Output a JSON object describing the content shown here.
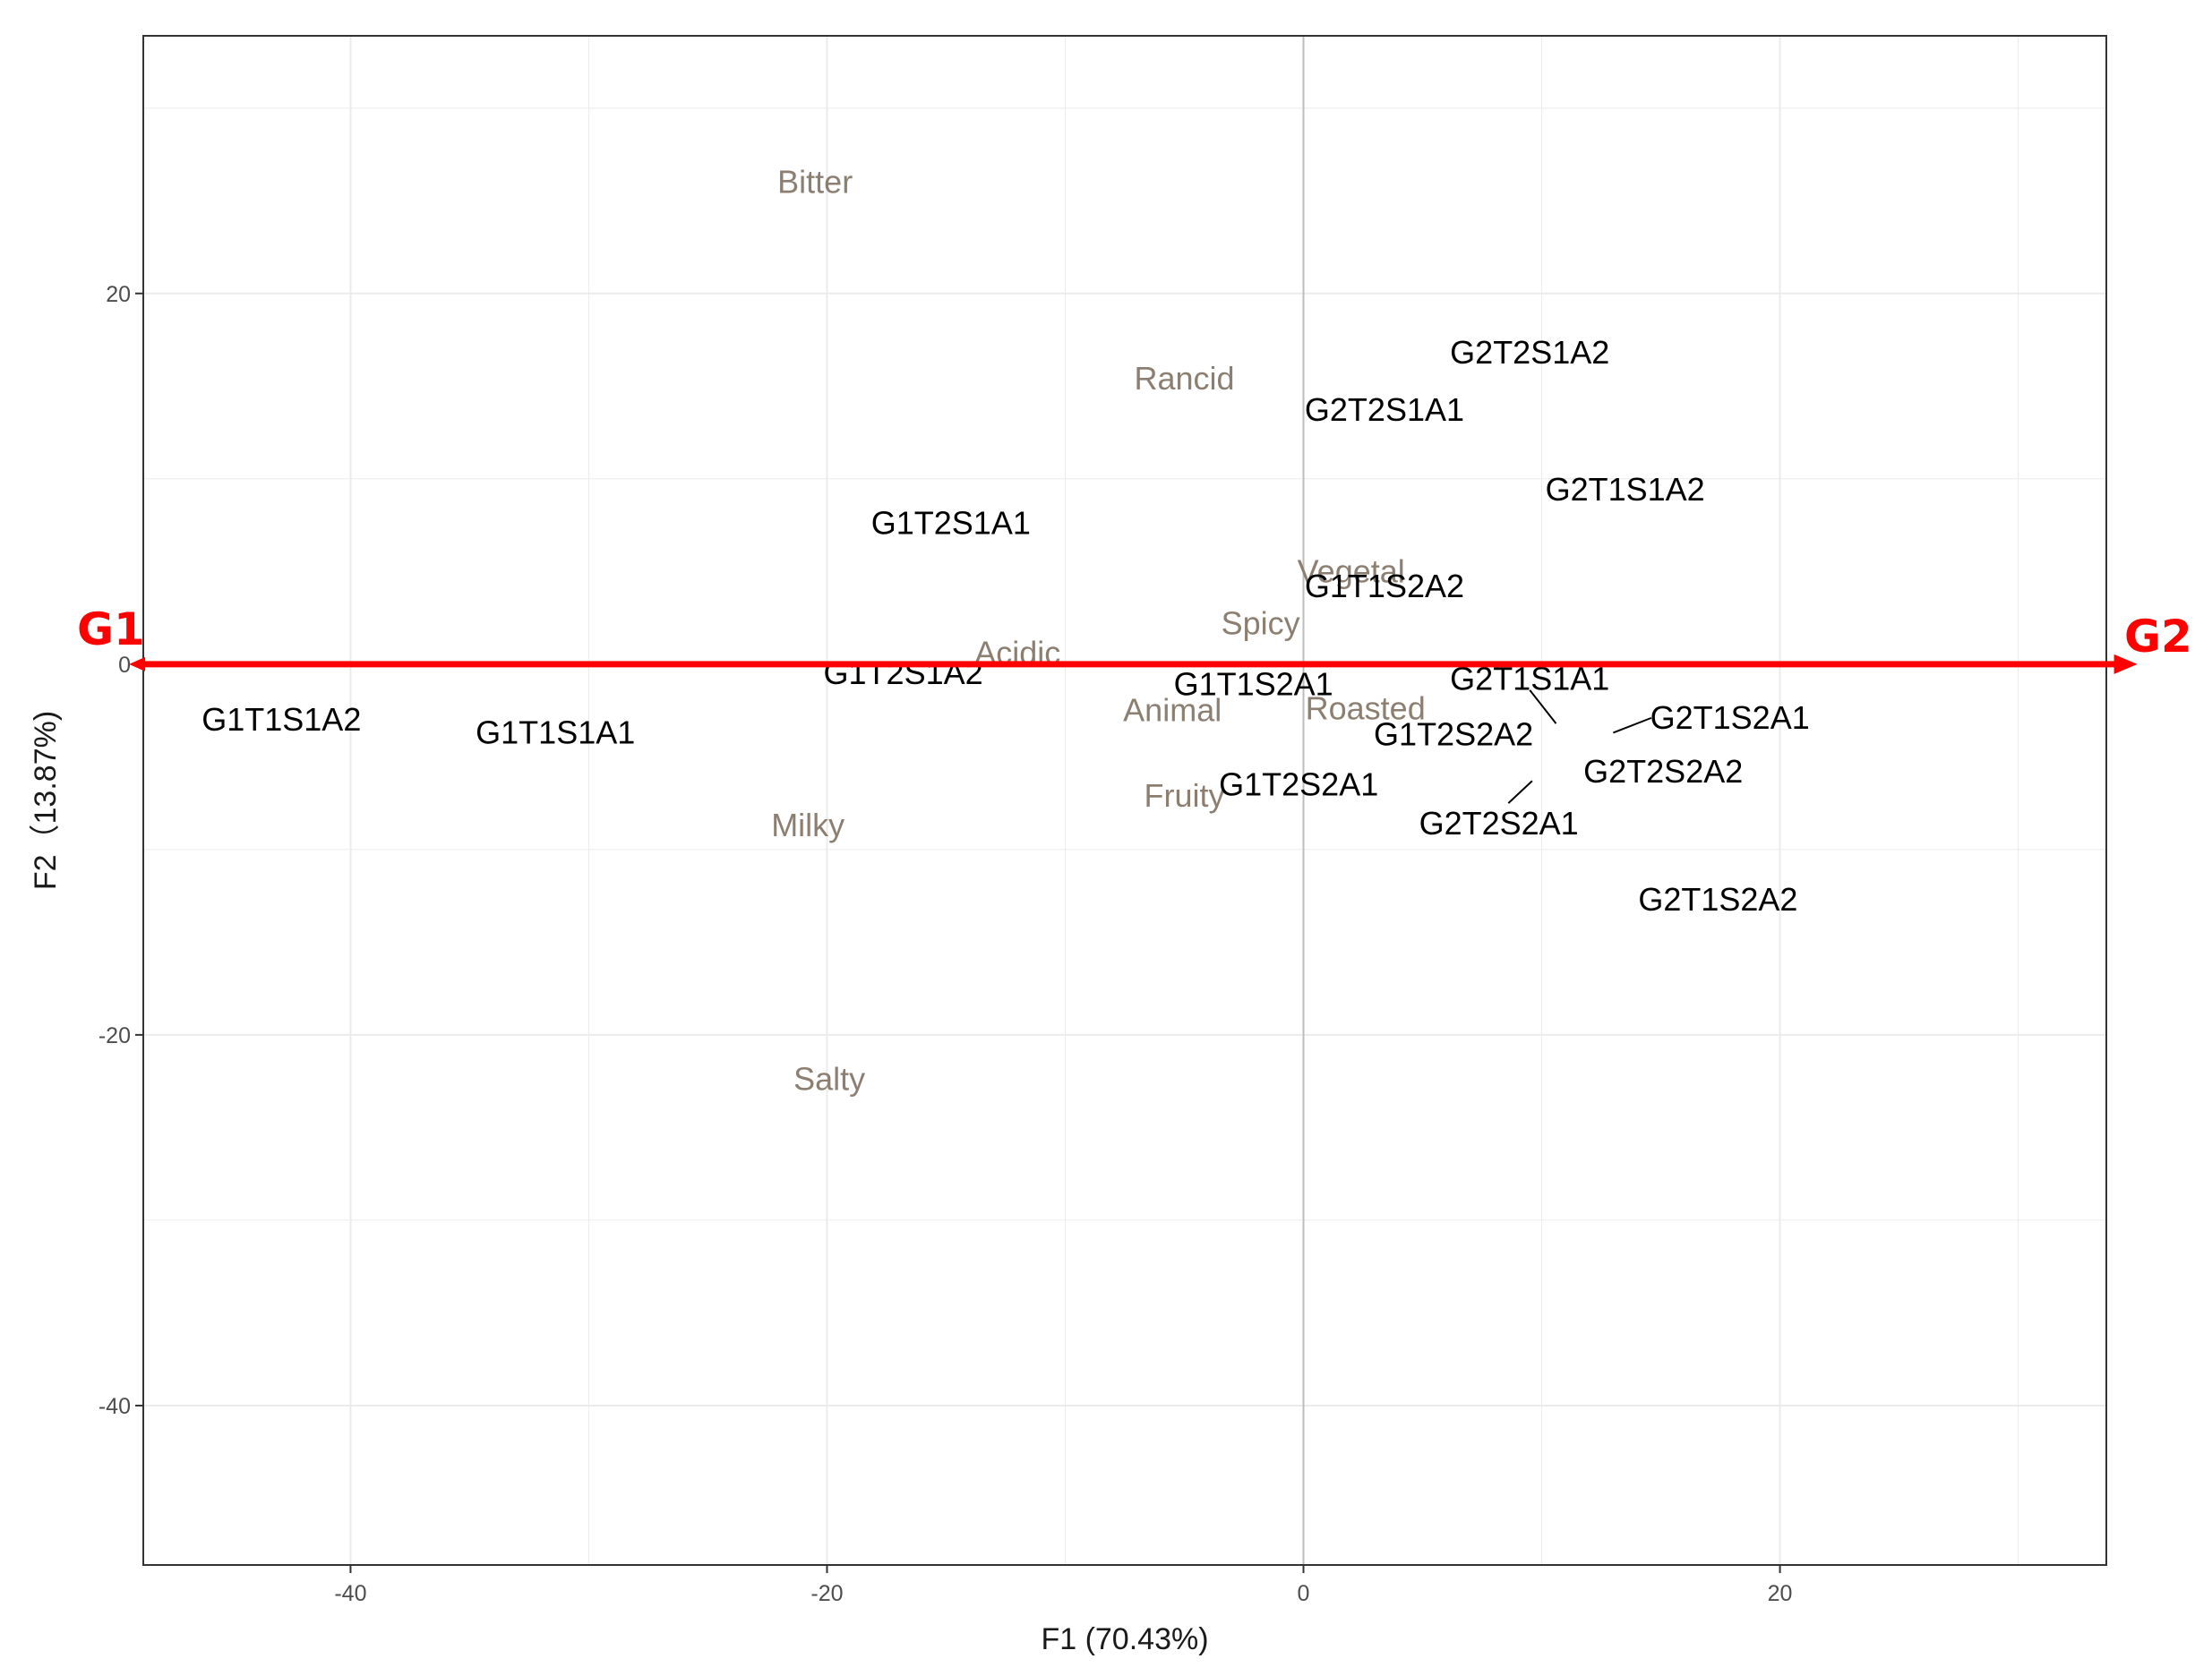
{
  "chart_data": {
    "type": "scatter",
    "xlabel": "F1 (70.43%)",
    "ylabel": "F2（13.87%)",
    "xlim": [
      -48.7,
      33.7
    ],
    "ylim": [
      -48.6,
      33.9
    ],
    "x_ticks": [
      -40,
      -20,
      0,
      20
    ],
    "y_ticks": [
      -40,
      -20,
      0,
      20
    ],
    "x_tick_labels": [
      "-40",
      "-20",
      "0",
      "20"
    ],
    "y_tick_labels": [
      "-40",
      "-20",
      "0",
      "20"
    ],
    "grid": true,
    "zero_lines": true,
    "series": [
      {
        "name": "samples",
        "color": "#000000",
        "points": [
          {
            "label": "G1T1S1A2",
            "x": -42.9,
            "y": -3.0
          },
          {
            "label": "G1T1S1A1",
            "x": -31.4,
            "y": -3.7
          },
          {
            "label": "G1T2S1A1",
            "x": -14.8,
            "y": 7.6
          },
          {
            "label": "G1T2S1A2",
            "x": -16.8,
            "y": -0.5
          },
          {
            "label": "G1T1S2A1",
            "x": -2.1,
            "y": -1.1
          },
          {
            "label": "G1T2S2A1",
            "x": -0.2,
            "y": -6.5
          },
          {
            "label": "G1T1S2A2",
            "x": 3.4,
            "y": 4.2
          },
          {
            "label": "G1T2S2A2",
            "x": 6.3,
            "y": -3.8
          },
          {
            "label": "G2T2S1A1",
            "x": 3.4,
            "y": 13.7
          },
          {
            "label": "G2T2S1A2",
            "x": 9.5,
            "y": 16.8
          },
          {
            "label": "G2T1S1A2",
            "x": 13.5,
            "y": 9.4
          },
          {
            "label": "G2T1S1A1",
            "x": 9.5,
            "y": -0.8
          },
          {
            "label": "G2T1S2A1",
            "x": 17.9,
            "y": -2.9
          },
          {
            "label": "G2T2S2A2",
            "x": 15.1,
            "y": -5.8
          },
          {
            "label": "G2T2S2A1",
            "x": 8.2,
            "y": -8.6
          },
          {
            "label": "G2T1S2A2",
            "x": 17.4,
            "y": -12.7
          }
        ]
      },
      {
        "name": "attributes",
        "color": "#8c7f71",
        "points": [
          {
            "label": "Bitter",
            "x": -20.5,
            "y": 26.0
          },
          {
            "label": "Rancid",
            "x": -5.0,
            "y": 15.4
          },
          {
            "label": "Vegetal",
            "x": 2.0,
            "y": 5.0
          },
          {
            "label": "Spicy",
            "x": -1.8,
            "y": 2.2
          },
          {
            "label": "Acidic",
            "x": -12.0,
            "y": 0.6
          },
          {
            "label": "Animal",
            "x": -5.5,
            "y": -2.5
          },
          {
            "label": "Roasted",
            "x": 2.6,
            "y": -2.4
          },
          {
            "label": "Fruity",
            "x": -5.0,
            "y": -7.1
          },
          {
            "label": "Milky",
            "x": -20.8,
            "y": -8.7
          },
          {
            "label": "Salty",
            "x": -19.9,
            "y": -22.4
          }
        ]
      }
    ],
    "leader_lines": [
      {
        "x1": 9.5,
        "y1": -1.4,
        "x2": 10.6,
        "y2": -3.2
      },
      {
        "x1": 14.6,
        "y1": -2.9,
        "x2": 13.0,
        "y2": -3.7
      },
      {
        "x1": 9.6,
        "y1": -6.3,
        "x2": 8.6,
        "y2": -7.5
      }
    ],
    "group_axis": {
      "color": "#ff0000",
      "y": 0,
      "x_start": -49.3,
      "x_end": 35.0,
      "left_label": "G1",
      "right_label": "G2"
    }
  }
}
